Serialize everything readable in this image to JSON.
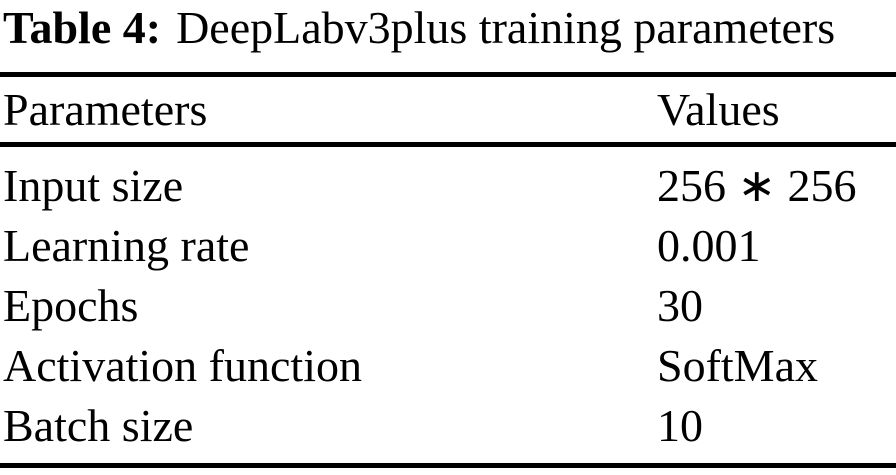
{
  "caption": {
    "label": "Table 4:",
    "text": "DeepLabv3plus training parameters"
  },
  "table": {
    "columns": [
      "Parameters",
      "Values"
    ],
    "rows": [
      {
        "parameter": "Input size",
        "value": "256 ∗ 256"
      },
      {
        "parameter": "Learning rate",
        "value": "0.001"
      },
      {
        "parameter": "Epochs",
        "value": "30"
      },
      {
        "parameter": "Activation function",
        "value": "SoftMax"
      },
      {
        "parameter": "Batch size",
        "value": "10"
      }
    ]
  },
  "colors": {
    "background": "#ffffff",
    "text": "#000000",
    "rule": "#000000"
  }
}
